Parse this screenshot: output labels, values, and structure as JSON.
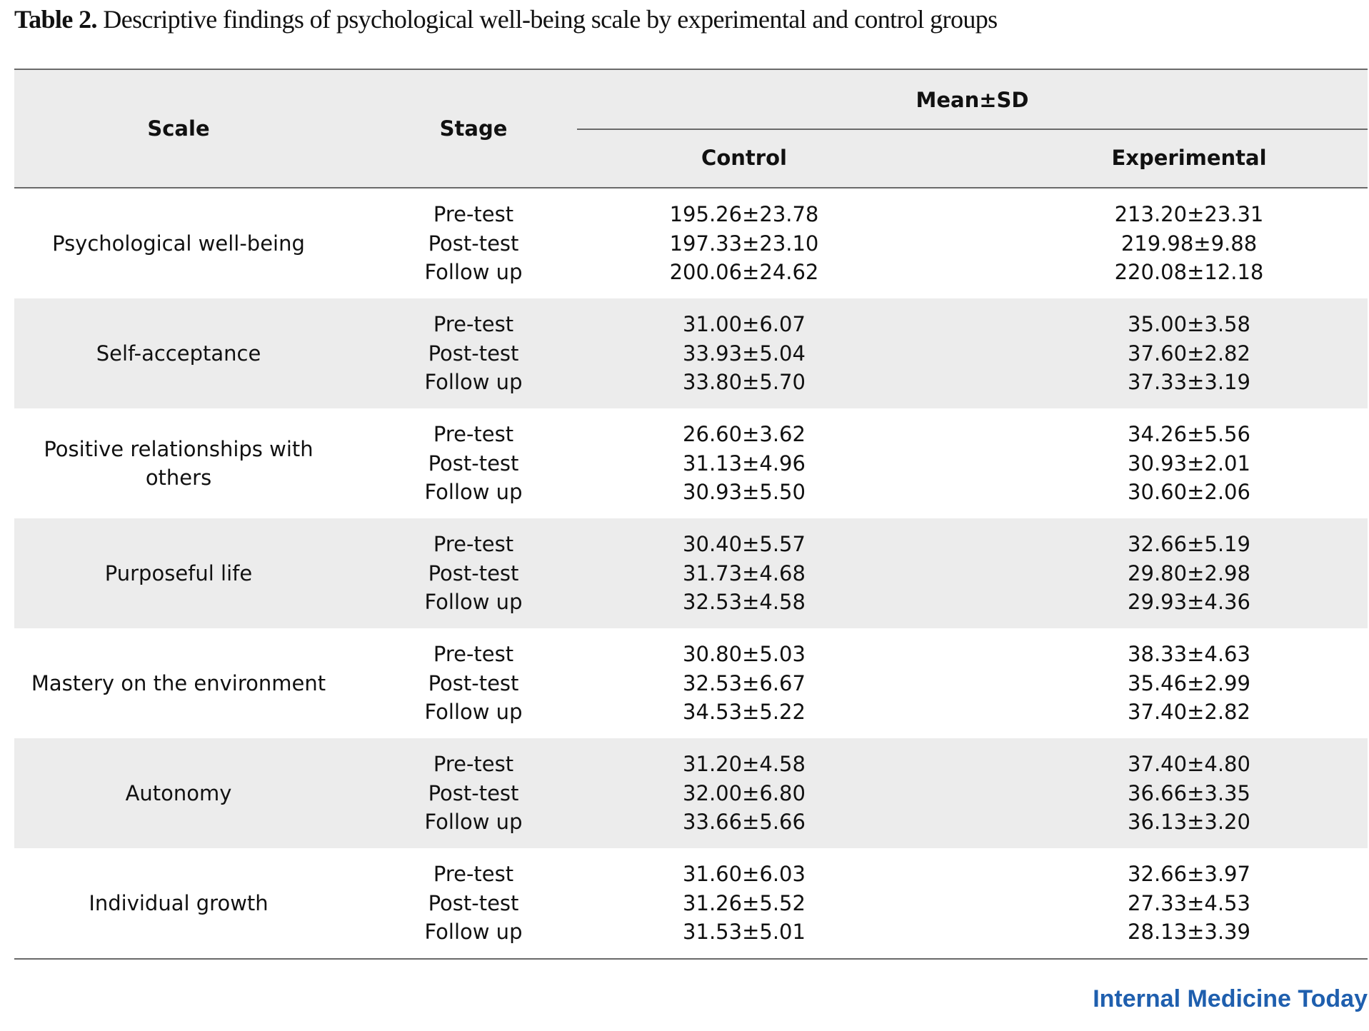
{
  "caption": {
    "label": "Table 2.",
    "text": " Descriptive findings of psychological well-being scale by experimental and control groups"
  },
  "table": {
    "headers": {
      "scale": "Scale",
      "stage": "Stage",
      "mean_sd": "Mean±SD",
      "control": "Control",
      "experimental": "Experimental"
    },
    "groups": [
      {
        "scale": "Psychological well-being",
        "stages": [
          "Pre-test",
          "Post-test",
          "Follow up"
        ],
        "control": [
          "195.26±23.78",
          "197.33±23.10",
          "200.06±24.62"
        ],
        "experimental": [
          "213.20±23.31",
          "219.98±9.88",
          "220.08±12.18"
        ]
      },
      {
        "scale": "Self-acceptance",
        "stages": [
          "Pre-test",
          "Post-test",
          "Follow up"
        ],
        "control": [
          "31.00±6.07",
          "33.93±5.04",
          "33.80±5.70"
        ],
        "experimental": [
          "35.00±3.58",
          "37.60±2.82",
          "37.33±3.19"
        ]
      },
      {
        "scale": "Positive relationships with others",
        "stages": [
          "Pre-test",
          "Post-test",
          "Follow up"
        ],
        "control": [
          "26.60±3.62",
          "31.13±4.96",
          "30.93±5.50"
        ],
        "experimental": [
          "34.26±5.56",
          "30.93±2.01",
          "30.60±2.06"
        ]
      },
      {
        "scale": "Purposeful life",
        "stages": [
          "Pre-test",
          "Post-test",
          "Follow up"
        ],
        "control": [
          "30.40±5.57",
          "31.73±4.68",
          "32.53±4.58"
        ],
        "experimental": [
          "32.66±5.19",
          "29.80±2.98",
          "29.93±4.36"
        ]
      },
      {
        "scale": "Mastery on the environment",
        "stages": [
          "Pre-test",
          "Post-test",
          "Follow up"
        ],
        "control": [
          "30.80±5.03",
          "32.53±6.67",
          "34.53±5.22"
        ],
        "experimental": [
          "38.33±4.63",
          "35.46±2.99",
          "37.40±2.82"
        ]
      },
      {
        "scale": "Autonomy",
        "stages": [
          "Pre-test",
          "Post-test",
          "Follow up"
        ],
        "control": [
          "31.20±4.58",
          "32.00±6.80",
          "33.66±5.66"
        ],
        "experimental": [
          "37.40±4.80",
          "36.66±3.35",
          "36.13±3.20"
        ]
      },
      {
        "scale": "Individual growth",
        "stages": [
          "Pre-test",
          "Post-test",
          "Follow up"
        ],
        "control": [
          "31.60±6.03",
          "31.26±5.52",
          "31.53±5.01"
        ],
        "experimental": [
          "32.66±3.97",
          "27.33±4.53",
          "28.13±3.39"
        ]
      }
    ]
  },
  "footer": {
    "brand": "Internal Medicine Today"
  },
  "colors": {
    "brand": "#1f5fae",
    "shade": "#ececec",
    "rule": "#6a6a6a"
  }
}
